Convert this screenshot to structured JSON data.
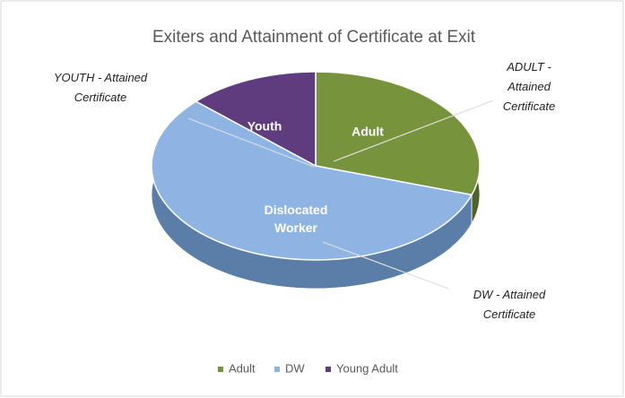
{
  "chart_data": {
    "type": "pie3d",
    "title": "Exiters and Attainment of Certificate at Exit",
    "categories": [
      "Adult",
      "DW",
      "Young Adult"
    ],
    "data_labels": [
      "Adult",
      "Dislocated Worker",
      "Youth"
    ],
    "values": [
      30,
      57,
      13
    ],
    "colors": [
      "#77933c",
      "#8eb4e3",
      "#5f3c7e"
    ],
    "side_colors": [
      "#4f6228",
      "#5b7ea8",
      "#3f2754"
    ],
    "annotations": [
      "ADULT - Attained Certificate",
      "DW - Attained Certificate",
      "YOUTH - Attained Certificate"
    ],
    "legend": "bottom"
  }
}
